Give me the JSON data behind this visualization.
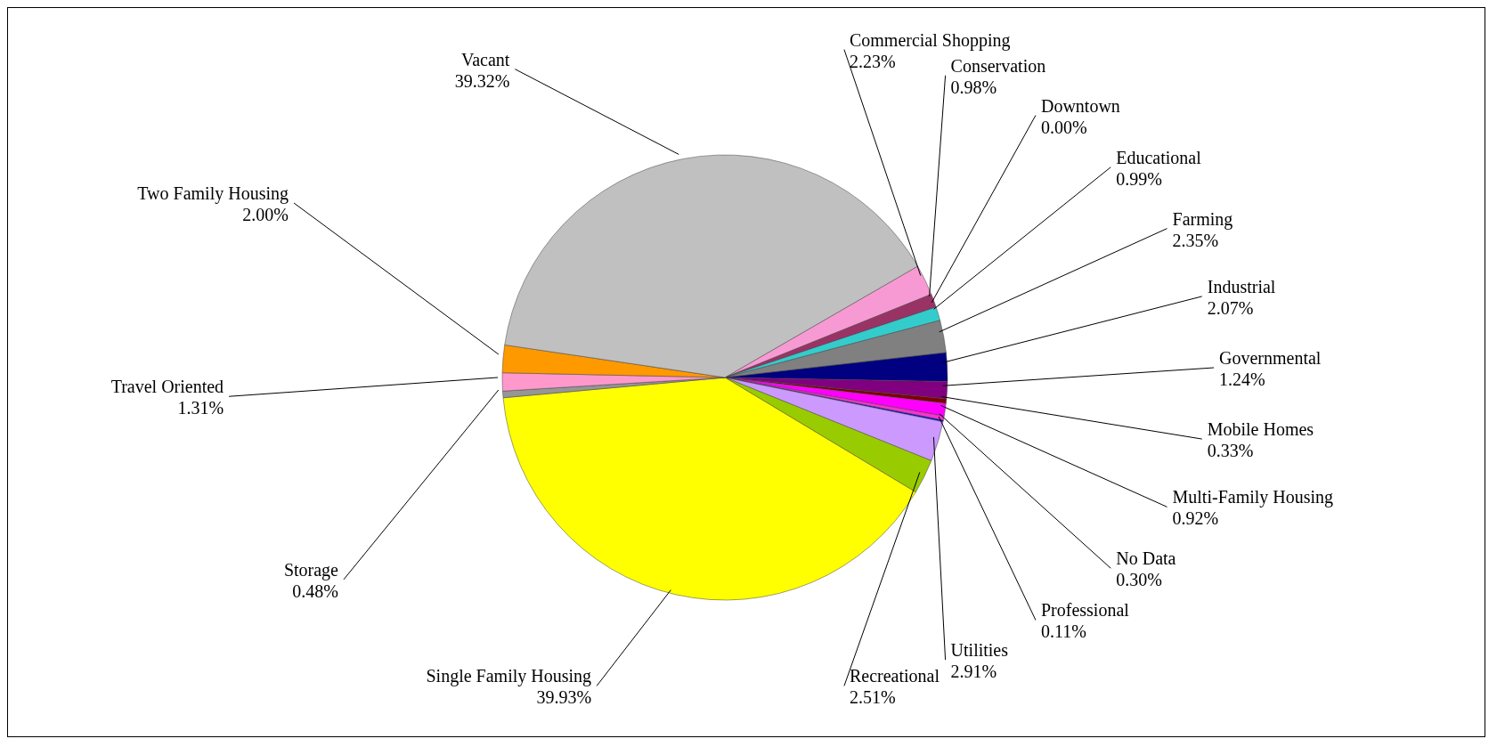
{
  "chart_data": {
    "type": "pie",
    "categories": [
      "Commercial Shopping",
      "Conservation",
      "Downtown",
      "Educational",
      "Farming",
      "Industrial",
      "Governmental",
      "Mobile Homes",
      "Multi-Family Housing",
      "No Data",
      "Professional",
      "Utilities",
      "Recreational",
      "Single Family Housing",
      "Storage",
      "Travel Oriented",
      "Two Family Housing",
      "Vacant"
    ],
    "values": [
      2.23,
      0.98,
      0.0,
      0.99,
      2.35,
      2.07,
      1.24,
      0.33,
      0.92,
      0.3,
      0.11,
      2.91,
      2.51,
      39.93,
      0.48,
      1.31,
      2.0,
      39.32
    ],
    "value_labels": [
      "2.23%",
      "0.98%",
      "0.00%",
      "0.99%",
      "2.35%",
      "2.07%",
      "1.24%",
      "0.33%",
      "0.92%",
      "0.30%",
      "0.11%",
      "2.91%",
      "2.51%",
      "39.93%",
      "0.48%",
      "1.31%",
      "2.00%",
      "39.32%"
    ],
    "colors": [
      "#f79ad3",
      "#993366",
      "#cc99ff",
      "#33cccc",
      "#808080",
      "#000080",
      "#800080",
      "#800000",
      "#ff00ff",
      "#ff33cc",
      "#0000ff",
      "#cc99ff",
      "#99cc00",
      "#ffff00",
      "#969696",
      "#ff99cc",
      "#ff9900",
      "#c0c0c0"
    ],
    "legend": false
  }
}
